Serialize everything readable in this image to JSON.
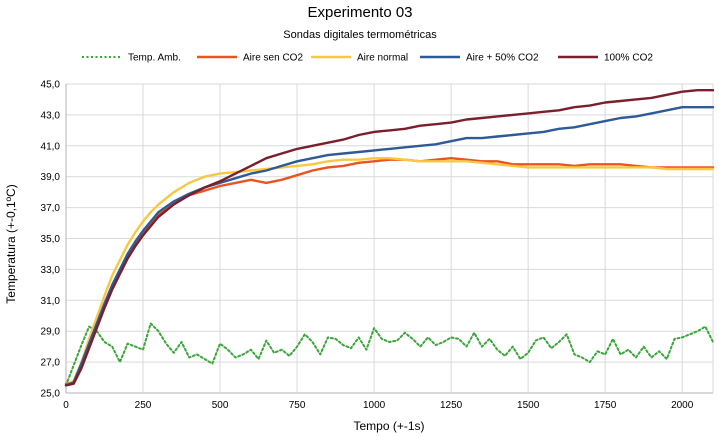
{
  "chart_data": {
    "type": "line",
    "title": "Experimento 03",
    "subtitle": "Sondas digitales termométricas",
    "xlabel": "Tempo (+-1s)",
    "ylabel": "Temperatura (+-0,1ºC)",
    "xlim": [
      0,
      2100
    ],
    "ylim": [
      25.0,
      45.0
    ],
    "x_ticks": [
      0,
      250,
      500,
      750,
      1000,
      1250,
      1500,
      1750,
      2000
    ],
    "y_ticks": [
      "25,0",
      "27,0",
      "29,0",
      "31,0",
      "33,0",
      "35,0",
      "37,0",
      "39,0",
      "41,0",
      "43,0",
      "45,0"
    ],
    "grid": true,
    "legend_position": "top",
    "series": [
      {
        "name": "Temp. Amb.",
        "color": "#3aa63a",
        "dashed": true,
        "x": [
          0,
          25,
          50,
          75,
          100,
          125,
          150,
          175,
          200,
          225,
          250,
          275,
          300,
          325,
          350,
          375,
          400,
          425,
          450,
          475,
          500,
          525,
          550,
          575,
          600,
          625,
          650,
          675,
          700,
          725,
          750,
          775,
          800,
          825,
          850,
          875,
          900,
          925,
          950,
          975,
          1000,
          1025,
          1050,
          1075,
          1100,
          1125,
          1150,
          1175,
          1200,
          1225,
          1250,
          1275,
          1300,
          1325,
          1350,
          1375,
          1400,
          1425,
          1450,
          1475,
          1500,
          1525,
          1550,
          1575,
          1600,
          1625,
          1650,
          1675,
          1700,
          1725,
          1750,
          1775,
          1800,
          1825,
          1850,
          1875,
          1900,
          1925,
          1950,
          1975,
          2000,
          2025,
          2050,
          2075,
          2100
        ],
        "y": [
          25.5,
          26.8,
          28.1,
          29.3,
          29.0,
          28.3,
          28.0,
          27.0,
          28.2,
          28.0,
          27.8,
          29.5,
          29.0,
          28.2,
          27.6,
          28.3,
          27.3,
          27.5,
          27.2,
          26.9,
          28.2,
          27.8,
          27.3,
          27.5,
          27.8,
          27.2,
          28.4,
          27.6,
          27.8,
          27.4,
          28.0,
          28.8,
          28.3,
          27.5,
          28.6,
          28.5,
          28.1,
          27.9,
          28.6,
          27.8,
          29.2,
          28.5,
          28.3,
          28.4,
          28.9,
          28.5,
          28.0,
          28.6,
          28.1,
          28.3,
          28.6,
          28.5,
          28.0,
          28.9,
          28.0,
          28.5,
          27.8,
          27.4,
          28.0,
          27.2,
          27.6,
          28.4,
          28.6,
          27.9,
          28.3,
          28.8,
          27.5,
          27.3,
          27.0,
          27.7,
          27.5,
          28.5,
          27.5,
          27.8,
          27.3,
          28.0,
          27.3,
          27.7,
          27.2,
          28.5,
          28.6,
          28.8,
          29.0,
          29.3,
          28.3
        ]
      },
      {
        "name": "Aire sen CO2",
        "color": "#ea5420",
        "dashed": false,
        "x": [
          0,
          25,
          50,
          75,
          100,
          125,
          150,
          175,
          200,
          225,
          250,
          275,
          300,
          350,
          400,
          450,
          500,
          550,
          600,
          650,
          700,
          750,
          800,
          850,
          900,
          950,
          1000,
          1050,
          1100,
          1150,
          1200,
          1250,
          1300,
          1350,
          1400,
          1450,
          1500,
          1550,
          1600,
          1650,
          1700,
          1750,
          1800,
          1850,
          1900,
          1950,
          2000,
          2050,
          2100
        ],
        "y": [
          25.6,
          25.7,
          26.8,
          28.0,
          29.3,
          30.6,
          31.8,
          32.8,
          33.8,
          34.6,
          35.3,
          35.9,
          36.5,
          37.3,
          37.8,
          38.1,
          38.4,
          38.6,
          38.8,
          38.6,
          38.8,
          39.1,
          39.4,
          39.6,
          39.7,
          39.9,
          40.0,
          40.1,
          40.1,
          40.0,
          40.1,
          40.2,
          40.1,
          40.0,
          40.0,
          39.8,
          39.8,
          39.8,
          39.8,
          39.7,
          39.8,
          39.8,
          39.8,
          39.7,
          39.6,
          39.6,
          39.6,
          39.6,
          39.6
        ]
      },
      {
        "name": "Aire normal",
        "color": "#f7c943",
        "dashed": false,
        "x": [
          0,
          25,
          50,
          75,
          100,
          125,
          150,
          175,
          200,
          225,
          250,
          275,
          300,
          350,
          400,
          450,
          500,
          550,
          600,
          650,
          700,
          750,
          800,
          850,
          900,
          950,
          1000,
          1050,
          1100,
          1150,
          1200,
          1250,
          1300,
          1350,
          1400,
          1450,
          1500,
          1550,
          1600,
          1650,
          1700,
          1750,
          1800,
          1850,
          1900,
          1950,
          2000,
          2050,
          2100
        ],
        "y": [
          25.5,
          25.8,
          27.0,
          28.5,
          29.9,
          31.3,
          32.6,
          33.6,
          34.6,
          35.4,
          36.1,
          36.7,
          37.2,
          38.0,
          38.6,
          39.0,
          39.2,
          39.3,
          39.4,
          39.5,
          39.6,
          39.7,
          39.8,
          40.0,
          40.1,
          40.1,
          40.2,
          40.2,
          40.1,
          40.0,
          40.0,
          40.0,
          40.0,
          39.9,
          39.8,
          39.7,
          39.6,
          39.6,
          39.6,
          39.6,
          39.6,
          39.6,
          39.6,
          39.6,
          39.6,
          39.5,
          39.5,
          39.5,
          39.5
        ]
      },
      {
        "name": "Aire + 50% CO2",
        "color": "#2e5a96",
        "dashed": false,
        "x": [
          0,
          25,
          50,
          75,
          100,
          125,
          150,
          175,
          200,
          225,
          250,
          275,
          300,
          350,
          400,
          450,
          500,
          550,
          600,
          650,
          700,
          750,
          800,
          850,
          900,
          950,
          1000,
          1050,
          1100,
          1150,
          1200,
          1250,
          1300,
          1350,
          1400,
          1450,
          1500,
          1550,
          1600,
          1650,
          1700,
          1750,
          1800,
          1850,
          1900,
          1950,
          2000,
          2050,
          2100
        ],
        "y": [
          25.5,
          25.7,
          26.9,
          28.2,
          29.5,
          30.8,
          32.0,
          33.0,
          34.0,
          34.8,
          35.5,
          36.1,
          36.7,
          37.4,
          37.9,
          38.3,
          38.6,
          38.9,
          39.2,
          39.4,
          39.7,
          40.0,
          40.2,
          40.4,
          40.5,
          40.6,
          40.7,
          40.8,
          40.9,
          41.0,
          41.1,
          41.3,
          41.5,
          41.5,
          41.6,
          41.7,
          41.8,
          41.9,
          42.1,
          42.2,
          42.4,
          42.6,
          42.8,
          42.9,
          43.1,
          43.3,
          43.5,
          43.5,
          43.5
        ]
      },
      {
        "name": "100% CO2",
        "color": "#7a1f2b",
        "dashed": false,
        "x": [
          0,
          25,
          50,
          75,
          100,
          125,
          150,
          175,
          200,
          225,
          250,
          275,
          300,
          350,
          400,
          450,
          500,
          550,
          600,
          650,
          700,
          750,
          800,
          850,
          900,
          950,
          1000,
          1050,
          1100,
          1150,
          1200,
          1250,
          1300,
          1350,
          1400,
          1450,
          1500,
          1550,
          1600,
          1650,
          1700,
          1750,
          1800,
          1850,
          1900,
          1950,
          2000,
          2050,
          2100
        ],
        "y": [
          25.5,
          25.6,
          26.6,
          27.9,
          29.2,
          30.5,
          31.7,
          32.7,
          33.7,
          34.5,
          35.2,
          35.8,
          36.4,
          37.2,
          37.8,
          38.3,
          38.7,
          39.2,
          39.7,
          40.2,
          40.5,
          40.8,
          41.0,
          41.2,
          41.4,
          41.7,
          41.9,
          42.0,
          42.1,
          42.3,
          42.4,
          42.5,
          42.7,
          42.8,
          42.9,
          43.0,
          43.1,
          43.2,
          43.3,
          43.5,
          43.6,
          43.8,
          43.9,
          44.0,
          44.1,
          44.3,
          44.5,
          44.6,
          44.6
        ]
      }
    ]
  }
}
